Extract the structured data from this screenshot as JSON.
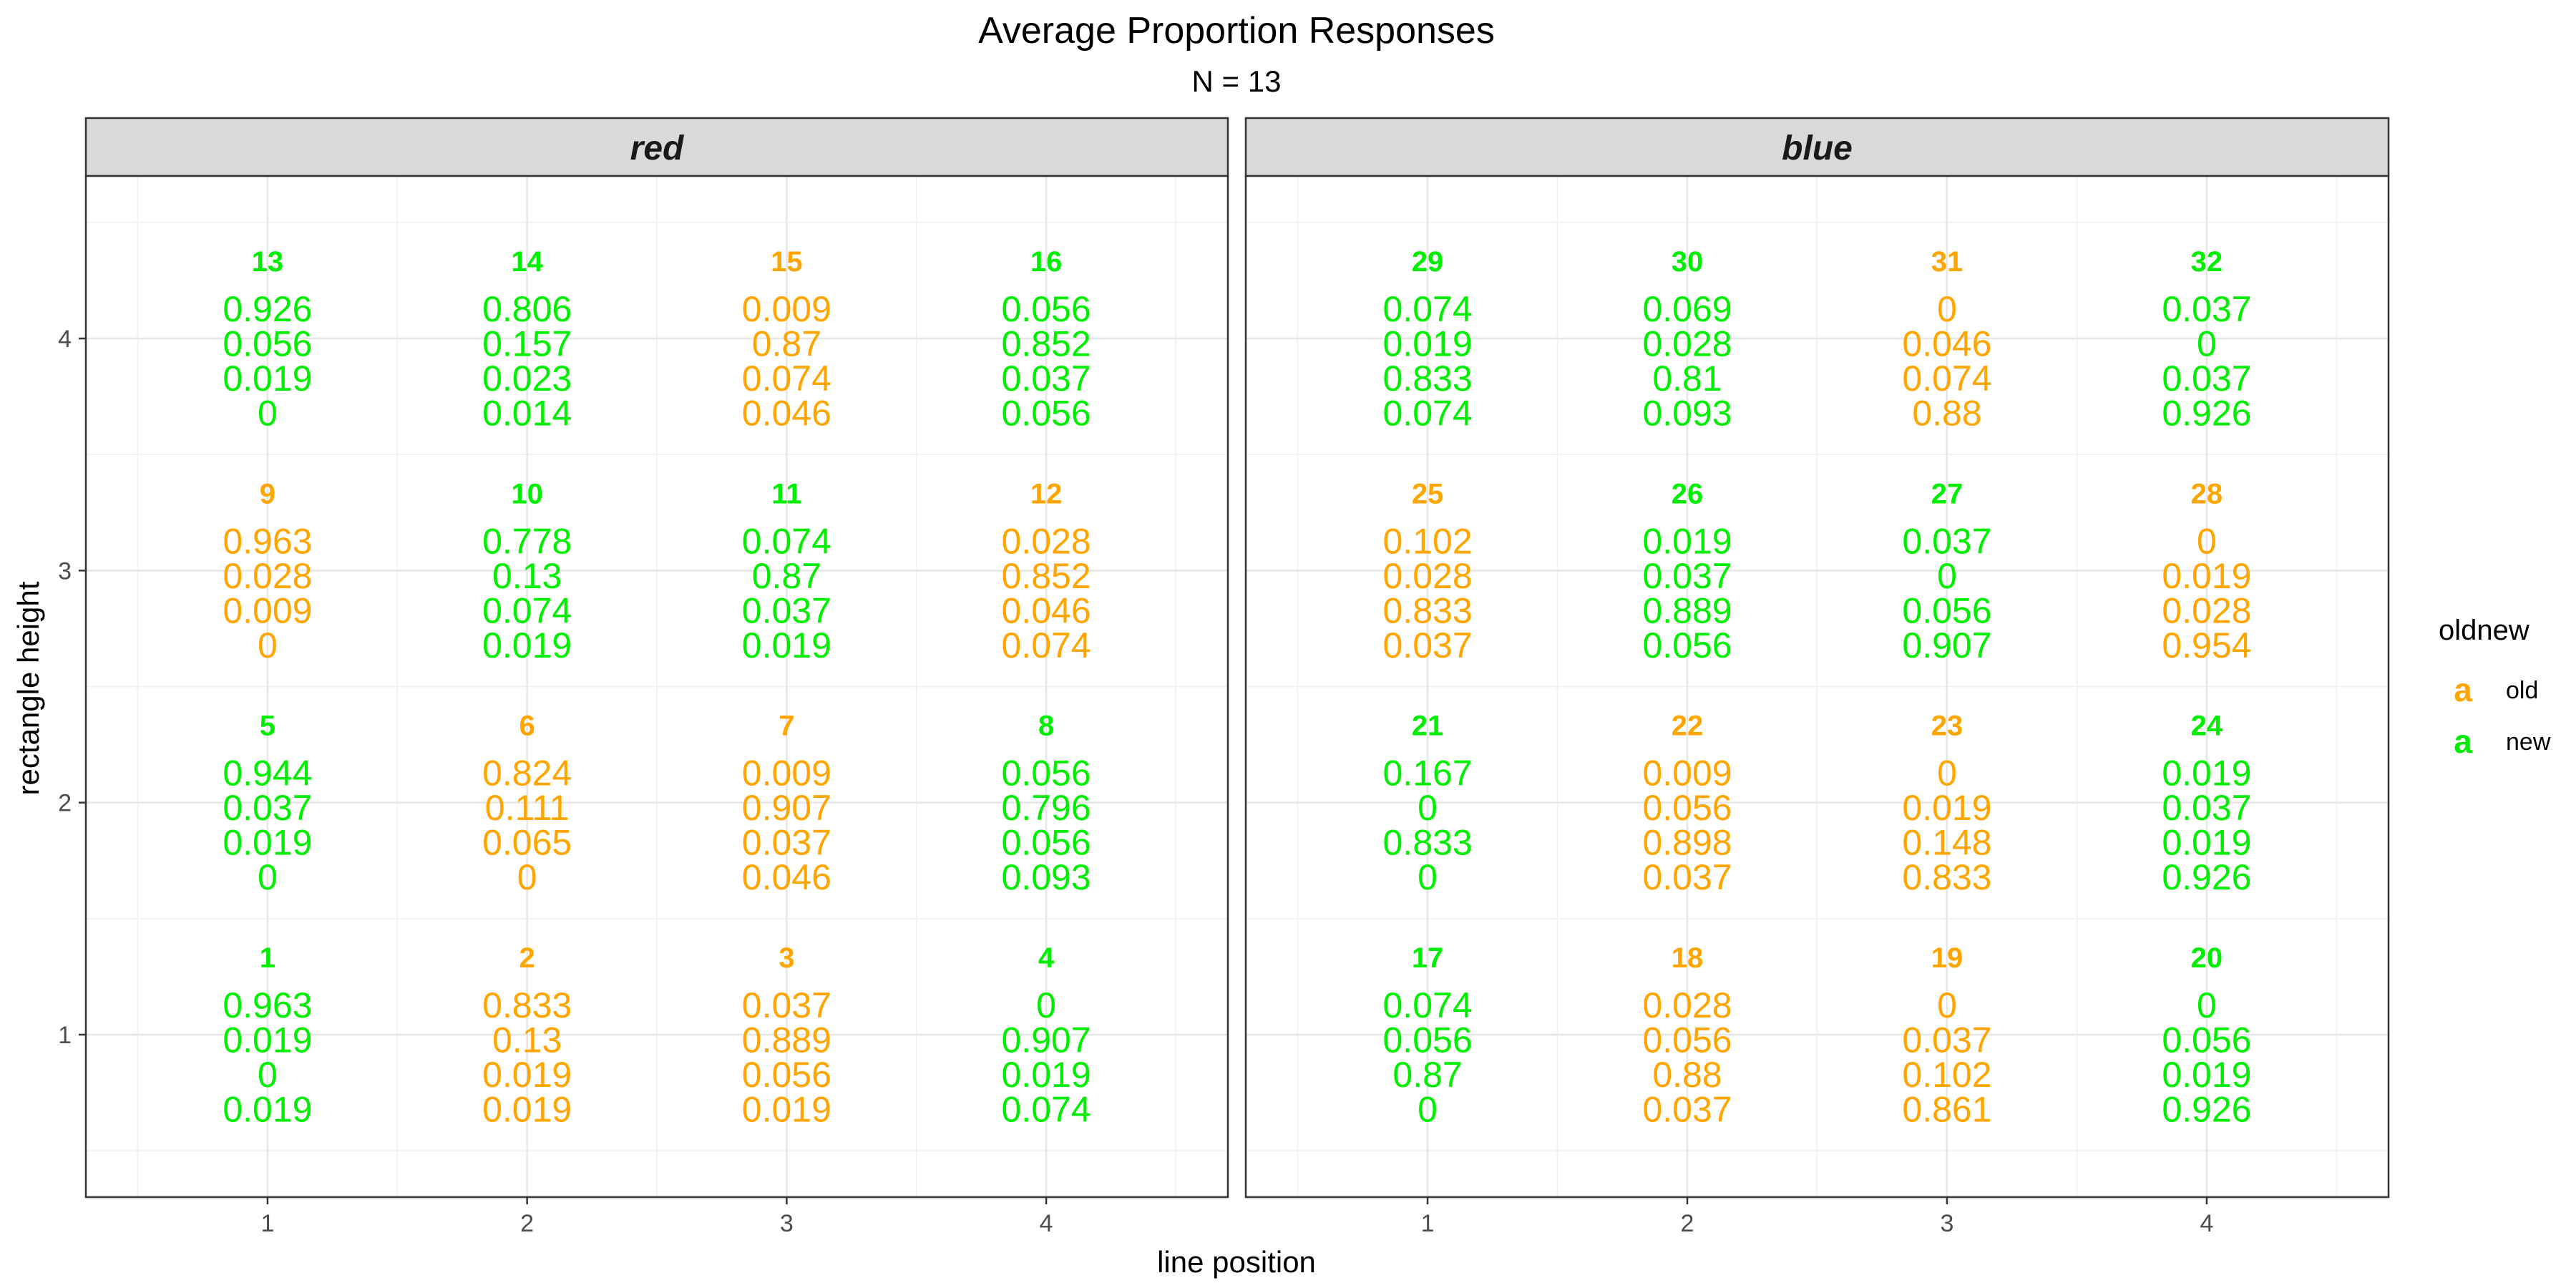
{
  "chart_data": {
    "type": "table",
    "title": "Average Proportion Responses",
    "subtitle": "N =  13",
    "xlabel": "line position",
    "ylabel": "rectangle height",
    "x_ticks": [
      1,
      2,
      3,
      4
    ],
    "y_ticks": [
      1,
      2,
      3,
      4
    ],
    "xlim": [
      0.3,
      4.7
    ],
    "ylim": [
      0.3,
      4.7
    ],
    "panels": [
      "red",
      "blue"
    ],
    "legend": {
      "title": "oldnew",
      "placement": "right",
      "key_glyph": "a",
      "entries": [
        {
          "name": "old",
          "color": "#FFA500"
        },
        {
          "name": "new",
          "color": "#00EE00"
        }
      ]
    },
    "colors": {
      "old": "#FFA500",
      "new": "#00EE00"
    },
    "cells": [
      {
        "panel": "red",
        "x": 1,
        "y": 4,
        "id": "13",
        "oldnew": "new",
        "values": [
          "0.926",
          "0.056",
          "0.019",
          "0"
        ]
      },
      {
        "panel": "red",
        "x": 2,
        "y": 4,
        "id": "14",
        "oldnew": "new",
        "values": [
          "0.806",
          "0.157",
          "0.023",
          "0.014"
        ]
      },
      {
        "panel": "red",
        "x": 3,
        "y": 4,
        "id": "15",
        "oldnew": "old",
        "values": [
          "0.009",
          "0.87",
          "0.074",
          "0.046"
        ]
      },
      {
        "panel": "red",
        "x": 4,
        "y": 4,
        "id": "16",
        "oldnew": "new",
        "values": [
          "0.056",
          "0.852",
          "0.037",
          "0.056"
        ]
      },
      {
        "panel": "red",
        "x": 1,
        "y": 3,
        "id": "9",
        "oldnew": "old",
        "values": [
          "0.963",
          "0.028",
          "0.009",
          "0"
        ]
      },
      {
        "panel": "red",
        "x": 2,
        "y": 3,
        "id": "10",
        "oldnew": "new",
        "values": [
          "0.778",
          "0.13",
          "0.074",
          "0.019"
        ]
      },
      {
        "panel": "red",
        "x": 3,
        "y": 3,
        "id": "11",
        "oldnew": "new",
        "values": [
          "0.074",
          "0.87",
          "0.037",
          "0.019"
        ]
      },
      {
        "panel": "red",
        "x": 4,
        "y": 3,
        "id": "12",
        "oldnew": "old",
        "values": [
          "0.028",
          "0.852",
          "0.046",
          "0.074"
        ]
      },
      {
        "panel": "red",
        "x": 1,
        "y": 2,
        "id": "5",
        "oldnew": "new",
        "values": [
          "0.944",
          "0.037",
          "0.019",
          "0"
        ]
      },
      {
        "panel": "red",
        "x": 2,
        "y": 2,
        "id": "6",
        "oldnew": "old",
        "values": [
          "0.824",
          "0.111",
          "0.065",
          "0"
        ]
      },
      {
        "panel": "red",
        "x": 3,
        "y": 2,
        "id": "7",
        "oldnew": "old",
        "values": [
          "0.009",
          "0.907",
          "0.037",
          "0.046"
        ]
      },
      {
        "panel": "red",
        "x": 4,
        "y": 2,
        "id": "8",
        "oldnew": "new",
        "values": [
          "0.056",
          "0.796",
          "0.056",
          "0.093"
        ]
      },
      {
        "panel": "red",
        "x": 1,
        "y": 1,
        "id": "1",
        "oldnew": "new",
        "values": [
          "0.963",
          "0.019",
          "0",
          "0.019"
        ]
      },
      {
        "panel": "red",
        "x": 2,
        "y": 1,
        "id": "2",
        "oldnew": "old",
        "values": [
          "0.833",
          "0.13",
          "0.019",
          "0.019"
        ]
      },
      {
        "panel": "red",
        "x": 3,
        "y": 1,
        "id": "3",
        "oldnew": "old",
        "values": [
          "0.037",
          "0.889",
          "0.056",
          "0.019"
        ]
      },
      {
        "panel": "red",
        "x": 4,
        "y": 1,
        "id": "4",
        "oldnew": "new",
        "values": [
          "0",
          "0.907",
          "0.019",
          "0.074"
        ]
      },
      {
        "panel": "blue",
        "x": 1,
        "y": 4,
        "id": "29",
        "oldnew": "new",
        "values": [
          "0.074",
          "0.019",
          "0.833",
          "0.074"
        ]
      },
      {
        "panel": "blue",
        "x": 2,
        "y": 4,
        "id": "30",
        "oldnew": "new",
        "values": [
          "0.069",
          "0.028",
          "0.81",
          "0.093"
        ]
      },
      {
        "panel": "blue",
        "x": 3,
        "y": 4,
        "id": "31",
        "oldnew": "old",
        "values": [
          "0",
          "0.046",
          "0.074",
          "0.88"
        ]
      },
      {
        "panel": "blue",
        "x": 4,
        "y": 4,
        "id": "32",
        "oldnew": "new",
        "values": [
          "0.037",
          "0",
          "0.037",
          "0.926"
        ]
      },
      {
        "panel": "blue",
        "x": 1,
        "y": 3,
        "id": "25",
        "oldnew": "old",
        "values": [
          "0.102",
          "0.028",
          "0.833",
          "0.037"
        ]
      },
      {
        "panel": "blue",
        "x": 2,
        "y": 3,
        "id": "26",
        "oldnew": "new",
        "values": [
          "0.019",
          "0.037",
          "0.889",
          "0.056"
        ]
      },
      {
        "panel": "blue",
        "x": 3,
        "y": 3,
        "id": "27",
        "oldnew": "new",
        "values": [
          "0.037",
          "0",
          "0.056",
          "0.907"
        ]
      },
      {
        "panel": "blue",
        "x": 4,
        "y": 3,
        "id": "28",
        "oldnew": "old",
        "values": [
          "0",
          "0.019",
          "0.028",
          "0.954"
        ]
      },
      {
        "panel": "blue",
        "x": 1,
        "y": 2,
        "id": "21",
        "oldnew": "new",
        "values": [
          "0.167",
          "0",
          "0.833",
          "0"
        ]
      },
      {
        "panel": "blue",
        "x": 2,
        "y": 2,
        "id": "22",
        "oldnew": "old",
        "values": [
          "0.009",
          "0.056",
          "0.898",
          "0.037"
        ]
      },
      {
        "panel": "blue",
        "x": 3,
        "y": 2,
        "id": "23",
        "oldnew": "old",
        "values": [
          "0",
          "0.019",
          "0.148",
          "0.833"
        ]
      },
      {
        "panel": "blue",
        "x": 4,
        "y": 2,
        "id": "24",
        "oldnew": "new",
        "values": [
          "0.019",
          "0.037",
          "0.019",
          "0.926"
        ]
      },
      {
        "panel": "blue",
        "x": 1,
        "y": 1,
        "id": "17",
        "oldnew": "new",
        "values": [
          "0.074",
          "0.056",
          "0.87",
          "0"
        ]
      },
      {
        "panel": "blue",
        "x": 2,
        "y": 1,
        "id": "18",
        "oldnew": "old",
        "values": [
          "0.028",
          "0.056",
          "0.88",
          "0.037"
        ]
      },
      {
        "panel": "blue",
        "x": 3,
        "y": 1,
        "id": "19",
        "oldnew": "old",
        "values": [
          "0",
          "0.037",
          "0.102",
          "0.861"
        ]
      },
      {
        "panel": "blue",
        "x": 4,
        "y": 1,
        "id": "20",
        "oldnew": "new",
        "values": [
          "0",
          "0.056",
          "0.019",
          "0.926"
        ]
      }
    ]
  }
}
